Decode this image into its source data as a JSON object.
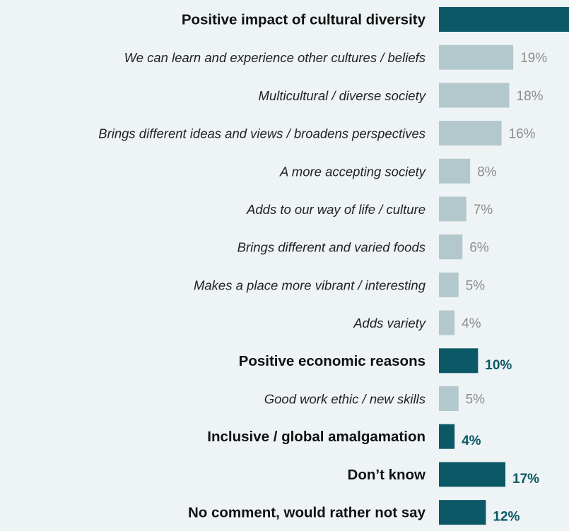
{
  "chart_data": {
    "type": "bar",
    "orientation": "horizontal",
    "colors": {
      "group": "#0b5866",
      "subitem": "#b3c8cc",
      "group_label": "#111111",
      "subitem_label": "#222222",
      "group_value": "#0b5866",
      "subitem_value": "#8c8c8c",
      "background": "#eef3f5"
    },
    "rows": [
      {
        "label": "Positive impact of cultural diversity",
        "value": 100,
        "value_label": "",
        "kind": "group"
      },
      {
        "label": "We can learn and experience other cultures / beliefs",
        "value": 19,
        "value_label": "19%",
        "kind": "subitem"
      },
      {
        "label": "Multicultural / diverse society",
        "value": 18,
        "value_label": "18%",
        "kind": "subitem"
      },
      {
        "label": "Brings different ideas and views / broadens perspectives",
        "value": 16,
        "value_label": "16%",
        "kind": "subitem"
      },
      {
        "label": "A more accepting society",
        "value": 8,
        "value_label": "8%",
        "kind": "subitem"
      },
      {
        "label": "Adds to our way of life / culture",
        "value": 7,
        "value_label": "7%",
        "kind": "subitem"
      },
      {
        "label": "Brings different and varied foods",
        "value": 6,
        "value_label": "6%",
        "kind": "subitem"
      },
      {
        "label": "Makes a place more vibrant / interesting",
        "value": 5,
        "value_label": "5%",
        "kind": "subitem"
      },
      {
        "label": "Adds variety",
        "value": 4,
        "value_label": "4%",
        "kind": "subitem"
      },
      {
        "label": "Positive economic reasons",
        "value": 10,
        "value_label": "10%",
        "kind": "group"
      },
      {
        "label": "Good work ethic / new skills",
        "value": 5,
        "value_label": "5%",
        "kind": "subitem"
      },
      {
        "label": "Inclusive / global amalgamation",
        "value": 4,
        "value_label": "4%",
        "kind": "group"
      },
      {
        "label": "Don’t know",
        "value": 17,
        "value_label": "17%",
        "kind": "group"
      },
      {
        "label": "No comment, would rather not say",
        "value": 12,
        "value_label": "12%",
        "kind": "group"
      }
    ]
  }
}
